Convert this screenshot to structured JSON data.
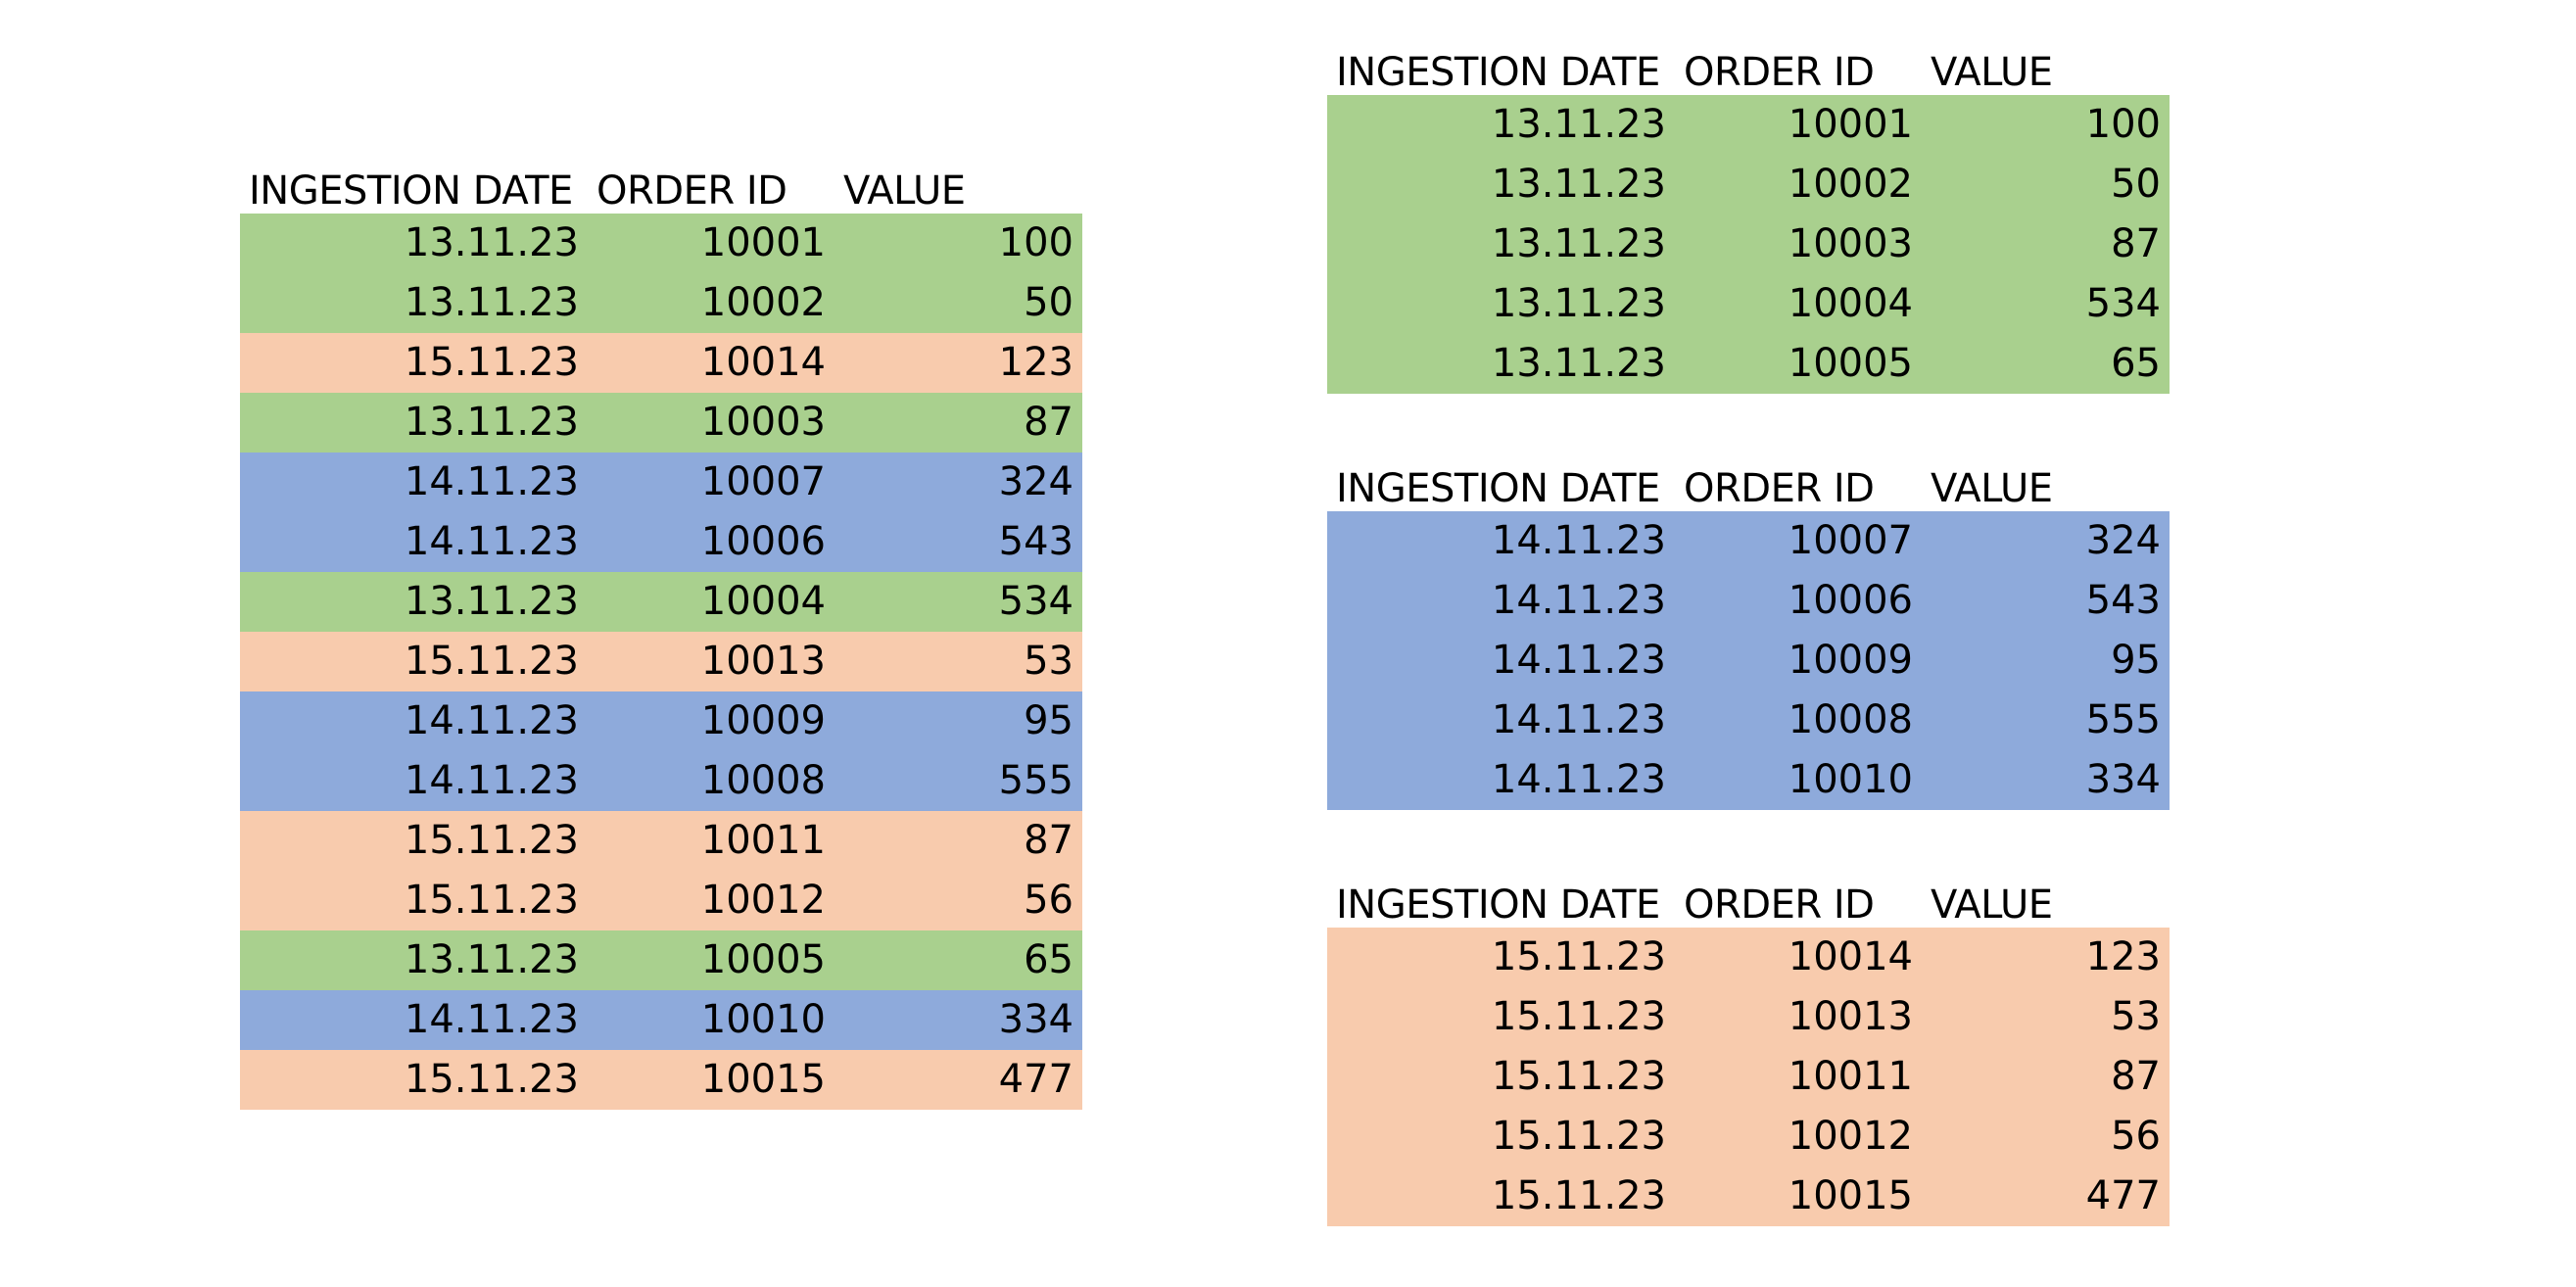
{
  "header": {
    "date": "INGESTION DATE",
    "order_id": "ORDER ID",
    "value": "VALUE"
  },
  "colors": {
    "13.11.23": "#a9d08e",
    "14.11.23": "#8eaadb",
    "15.11.23": "#f8cbad"
  },
  "tables": [
    {
      "id": "table-all",
      "rows": [
        {
          "date": "13.11.23",
          "order_id": "10001",
          "value": "100"
        },
        {
          "date": "13.11.23",
          "order_id": "10002",
          "value": "50"
        },
        {
          "date": "15.11.23",
          "order_id": "10014",
          "value": "123"
        },
        {
          "date": "13.11.23",
          "order_id": "10003",
          "value": "87"
        },
        {
          "date": "14.11.23",
          "order_id": "10007",
          "value": "324"
        },
        {
          "date": "14.11.23",
          "order_id": "10006",
          "value": "543"
        },
        {
          "date": "13.11.23",
          "order_id": "10004",
          "value": "534"
        },
        {
          "date": "15.11.23",
          "order_id": "10013",
          "value": "53"
        },
        {
          "date": "14.11.23",
          "order_id": "10009",
          "value": "95"
        },
        {
          "date": "14.11.23",
          "order_id": "10008",
          "value": "555"
        },
        {
          "date": "15.11.23",
          "order_id": "10011",
          "value": "87"
        },
        {
          "date": "15.11.23",
          "order_id": "10012",
          "value": "56"
        },
        {
          "date": "13.11.23",
          "order_id": "10005",
          "value": "65"
        },
        {
          "date": "14.11.23",
          "order_id": "10010",
          "value": "334"
        },
        {
          "date": "15.11.23",
          "order_id": "10015",
          "value": "477"
        }
      ]
    },
    {
      "id": "table-13",
      "rows": [
        {
          "date": "13.11.23",
          "order_id": "10001",
          "value": "100"
        },
        {
          "date": "13.11.23",
          "order_id": "10002",
          "value": "50"
        },
        {
          "date": "13.11.23",
          "order_id": "10003",
          "value": "87"
        },
        {
          "date": "13.11.23",
          "order_id": "10004",
          "value": "534"
        },
        {
          "date": "13.11.23",
          "order_id": "10005",
          "value": "65"
        }
      ]
    },
    {
      "id": "table-14",
      "rows": [
        {
          "date": "14.11.23",
          "order_id": "10007",
          "value": "324"
        },
        {
          "date": "14.11.23",
          "order_id": "10006",
          "value": "543"
        },
        {
          "date": "14.11.23",
          "order_id": "10009",
          "value": "95"
        },
        {
          "date": "14.11.23",
          "order_id": "10008",
          "value": "555"
        },
        {
          "date": "14.11.23",
          "order_id": "10010",
          "value": "334"
        }
      ]
    },
    {
      "id": "table-15",
      "rows": [
        {
          "date": "15.11.23",
          "order_id": "10014",
          "value": "123"
        },
        {
          "date": "15.11.23",
          "order_id": "10013",
          "value": "53"
        },
        {
          "date": "15.11.23",
          "order_id": "10011",
          "value": "87"
        },
        {
          "date": "15.11.23",
          "order_id": "10012",
          "value": "56"
        },
        {
          "date": "15.11.23",
          "order_id": "10015",
          "value": "477"
        }
      ]
    }
  ]
}
